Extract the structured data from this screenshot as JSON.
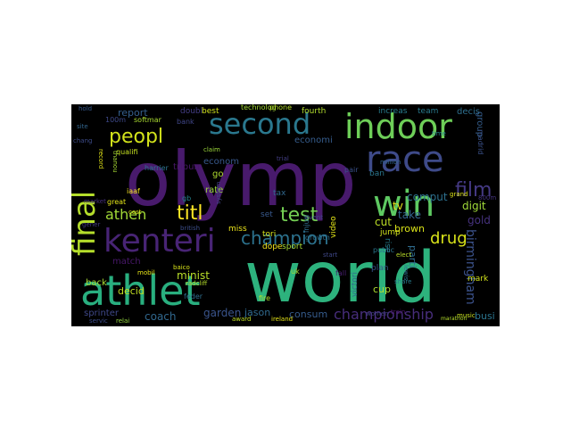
{
  "colors": {
    "background": "#000000",
    "page": "#ffffff"
  },
  "words": [
    {
      "text": "olymp",
      "color": "#481a6c"
    },
    {
      "text": "world",
      "color": "#2db27d"
    },
    {
      "text": "athlet",
      "color": "#29af7f"
    },
    {
      "text": "kenteri",
      "color": "#482475"
    },
    {
      "text": "race",
      "color": "#3e4a89"
    },
    {
      "text": "indoor",
      "color": "#6ece58"
    },
    {
      "text": "second",
      "color": "#2a788e"
    },
    {
      "text": "final",
      "color": "#b5de2b"
    },
    {
      "text": "win",
      "color": "#5ec962"
    },
    {
      "text": "champion",
      "color": "#2c728e"
    },
    {
      "text": "test",
      "color": "#75d054"
    },
    {
      "text": "titl",
      "color": "#fde725"
    },
    {
      "text": "athen",
      "color": "#a2da37"
    },
    {
      "text": "peopl",
      "color": "#d2e21b"
    },
    {
      "text": "film",
      "color": "#443983"
    },
    {
      "text": "drug",
      "color": "#d8e219"
    },
    {
      "text": "championship",
      "color": "#472d7b"
    },
    {
      "text": "birmingham",
      "color": "#3b528b"
    },
    {
      "text": "tv",
      "color": "#e5e419"
    },
    {
      "text": "comput",
      "color": "#2d708e"
    },
    {
      "text": "gold",
      "color": "#46327e"
    },
    {
      "text": "digit",
      "color": "#a0da39"
    },
    {
      "text": "take",
      "color": "#33638d"
    },
    {
      "text": "cut",
      "color": "#bddf26"
    },
    {
      "text": "brown",
      "color": "#dae319"
    },
    {
      "text": "parti",
      "color": "#2f6c8e"
    },
    {
      "text": "minist",
      "color": "#b8de29"
    },
    {
      "text": "coach",
      "color": "#31688e"
    },
    {
      "text": "garden",
      "color": "#3a548c"
    },
    {
      "text": "jason",
      "color": "#306a8e"
    },
    {
      "text": "consum",
      "color": "#365c8d"
    },
    {
      "text": "busi",
      "color": "#2b748e"
    },
    {
      "text": "cup",
      "color": "#addc30"
    },
    {
      "text": "decid",
      "color": "#c2df23"
    },
    {
      "text": "match",
      "color": "#48186a"
    },
    {
      "text": "back",
      "color": "#a8db34"
    },
    {
      "text": "sprinter",
      "color": "#3f4889"
    },
    {
      "text": "report",
      "color": "#355f8d"
    },
    {
      "text": "econom",
      "color": "#38588c"
    },
    {
      "text": "economi",
      "color": "#365d8d"
    },
    {
      "text": "rate",
      "color": "#9bd93c"
    },
    {
      "text": "tribun",
      "color": "#481769"
    },
    {
      "text": "go",
      "color": "#b0dd2f"
    },
    {
      "text": "set",
      "color": "#38598c"
    },
    {
      "text": "tax",
      "color": "#31688e"
    },
    {
      "text": "tori",
      "color": "#d5e21a"
    },
    {
      "text": "dope",
      "color": "#f1e51d"
    },
    {
      "text": "decis",
      "color": "#2e6f8e"
    },
    {
      "text": "group",
      "color": "#355e8d"
    },
    {
      "text": "rise",
      "color": "#277f8e"
    },
    {
      "text": "victori",
      "color": "#31678e"
    },
    {
      "text": "increas",
      "color": "#287c8e"
    },
    {
      "text": "team",
      "color": "#297a8e"
    },
    {
      "text": "fourth",
      "color": "#b2dd2d"
    },
    {
      "text": "best",
      "color": "#d0e11c"
    },
    {
      "text": "doubl",
      "color": "#433d84"
    },
    {
      "text": "technolog",
      "color": "#a5db36"
    },
    {
      "text": "phone",
      "color": "#b5de2b"
    },
    {
      "text": "softmar",
      "color": "#aadc32"
    },
    {
      "text": "100m",
      "color": "#3e4989"
    },
    {
      "text": "bank",
      "color": "#404688"
    },
    {
      "text": "qualifi",
      "color": "#c5e021"
    },
    {
      "text": "harrier",
      "color": "#2c738e"
    },
    {
      "text": "gb",
      "color": "#25848e"
    },
    {
      "text": "iaaf",
      "color": "#f8e621"
    },
    {
      "text": "great",
      "color": "#e2e418"
    },
    {
      "text": "cost",
      "color": "#dde318"
    },
    {
      "text": "market",
      "color": "#46307e"
    },
    {
      "text": "gener",
      "color": "#443a83"
    },
    {
      "text": "british",
      "color": "#3d4e8a"
    },
    {
      "text": "mobil",
      "color": "#e7e419"
    },
    {
      "text": "baico",
      "color": "#d8e219"
    },
    {
      "text": "miss",
      "color": "#ece51b"
    },
    {
      "text": "feder",
      "color": "#2e6e8e"
    },
    {
      "text": "radcliff",
      "color": "#b5de2b"
    },
    {
      "text": "sport",
      "color": "#a5db36"
    },
    {
      "text": "growth",
      "color": "#2d708e"
    },
    {
      "text": "system",
      "color": "#414487"
    },
    {
      "text": "claim",
      "color": "#9dd93b"
    },
    {
      "text": "trial",
      "color": "#433e85"
    },
    {
      "text": "ban",
      "color": "#2a768e"
    },
    {
      "text": "pair",
      "color": "#3b518b"
    },
    {
      "text": "million",
      "color": "#32658e"
    },
    {
      "text": "video",
      "color": "#e2e418"
    },
    {
      "text": "injuri",
      "color": "#2e6d8e"
    },
    {
      "text": "uk",
      "color": "#a8db34"
    },
    {
      "text": "fire",
      "color": "#b0dd2f"
    },
    {
      "text": "award",
      "color": "#c0df25"
    },
    {
      "text": "ireland",
      "color": "#e5e419"
    },
    {
      "text": "servic",
      "color": "#3d4d8a"
    },
    {
      "text": "relai",
      "color": "#95d840"
    },
    {
      "text": "plan",
      "color": "#38588c"
    },
    {
      "text": "mark",
      "color": "#d2e21b"
    },
    {
      "text": "fall",
      "color": "#481f70"
    },
    {
      "text": "public",
      "color": "#2b758e"
    },
    {
      "text": "share",
      "color": "#287d8e"
    },
    {
      "text": "music",
      "color": "#c8e020"
    },
    {
      "text": "train",
      "color": "#4a186c"
    },
    {
      "text": "women",
      "color": "#424086"
    },
    {
      "text": "elect",
      "color": "#bade28"
    },
    {
      "text": "start",
      "color": "#3f4788"
    },
    {
      "text": "jump",
      "color": "#d0e11c"
    },
    {
      "text": "madrid",
      "color": "#3b528b"
    },
    {
      "text": "grand",
      "color": "#dde318"
    },
    {
      "text": "800m",
      "color": "#453581"
    },
    {
      "text": "thanou",
      "color": "#a8db34"
    },
    {
      "text": "record",
      "color": "#e2e418"
    },
    {
      "text": "marathon",
      "color": "#b5de2b"
    },
    {
      "text": "site",
      "color": "#32658e"
    },
    {
      "text": "hold",
      "color": "#37598c"
    },
    {
      "text": "chang",
      "color": "#3e4c8a"
    },
    {
      "text": "lewis",
      "color": "#2d718e"
    },
    {
      "text": "event",
      "color": "#404588"
    },
    {
      "text": "time",
      "color": "#25838e"
    }
  ]
}
